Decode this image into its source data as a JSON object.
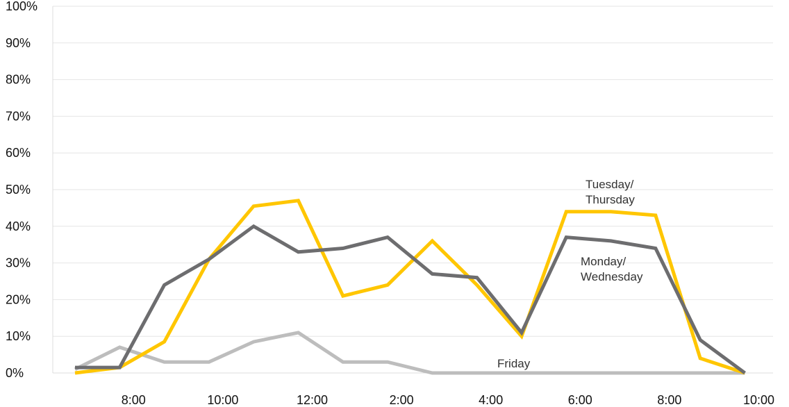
{
  "chart_data": {
    "type": "line",
    "title": "",
    "xlabel": "",
    "ylabel": "",
    "ylim": [
      0,
      100
    ],
    "grid": true,
    "y_ticks": [
      "0%",
      "10%",
      "20%",
      "30%",
      "40%",
      "50%",
      "60%",
      "70%",
      "80%",
      "90%",
      "100%"
    ],
    "x_ticks": [
      "8:00",
      "10:00",
      "12:00",
      "2:00",
      "4:00",
      "6:00",
      "8:00",
      "10:00"
    ],
    "x": [
      "7:00",
      "8:00",
      "9:00",
      "10:00",
      "11:00",
      "12:00",
      "1:00",
      "2:00",
      "3:00",
      "4:00",
      "5:00",
      "6:00",
      "7:00",
      "8:00",
      "9:00",
      "10:00"
    ],
    "series": [
      {
        "name": "Tuesday/ Thursday",
        "color": "#ffc600",
        "values": [
          0,
          1.5,
          8.5,
          31,
          45.5,
          47,
          21,
          24,
          36,
          24,
          10,
          44,
          44,
          43,
          4,
          0
        ]
      },
      {
        "name": "Monday/ Wednesday",
        "color": "#6d6d6f",
        "values": [
          1.5,
          1.5,
          24,
          31,
          40,
          33,
          34,
          37,
          27,
          26,
          11,
          37,
          36,
          34,
          9,
          0
        ]
      },
      {
        "name": "Friday",
        "color": "#bdbdbd",
        "values": [
          1,
          7,
          3,
          3,
          8.5,
          11,
          3,
          3,
          0,
          0,
          0,
          0,
          0,
          0,
          0,
          0
        ]
      }
    ],
    "annotations": [
      {
        "lines": [
          "Tuesday/",
          "Thursday"
        ]
      },
      {
        "lines": [
          "Monday/",
          "Wednesday"
        ]
      },
      {
        "lines": [
          "Friday"
        ]
      }
    ]
  }
}
